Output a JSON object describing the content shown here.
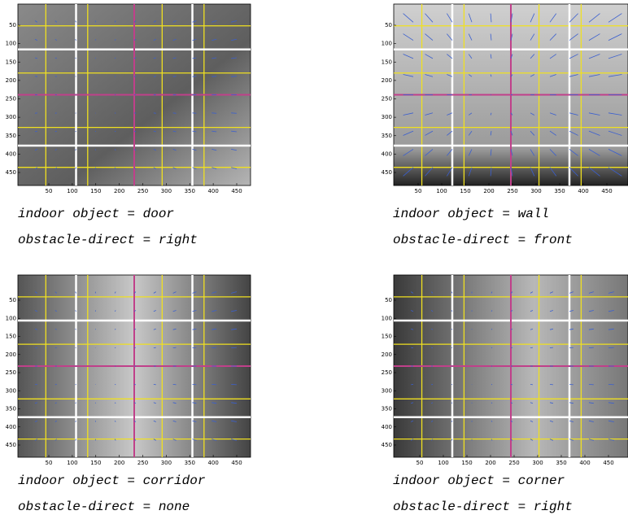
{
  "panels": [
    {
      "xticks": [
        50,
        100,
        150,
        200,
        250,
        300,
        350,
        400,
        450
      ],
      "yticks": [
        50,
        100,
        150,
        200,
        250,
        300,
        350,
        400,
        450
      ],
      "object_line": "indoor object = door",
      "direction_line": "obstacle-direct = right"
    },
    {
      "xticks": [
        50,
        100,
        150,
        200,
        250,
        300,
        350,
        400,
        450
      ],
      "yticks": [
        50,
        100,
        150,
        200,
        250,
        300,
        350,
        400,
        450
      ],
      "object_line": "indoor object = wall",
      "direction_line": "obstacle-direct = front"
    },
    {
      "xticks": [
        50,
        100,
        150,
        200,
        250,
        300,
        350,
        400,
        450
      ],
      "yticks": [
        50,
        100,
        150,
        200,
        250,
        300,
        350,
        400,
        450
      ],
      "object_line": "indoor object = corridor",
      "direction_line": "obstacle-direct = none"
    },
    {
      "xticks": [
        50,
        100,
        150,
        200,
        250,
        300,
        350,
        400,
        450
      ],
      "yticks": [
        50,
        100,
        150,
        200,
        250,
        300,
        350,
        400,
        450
      ],
      "object_line": "indoor object = corner",
      "direction_line": "obstacle-direct = right"
    }
  ]
}
